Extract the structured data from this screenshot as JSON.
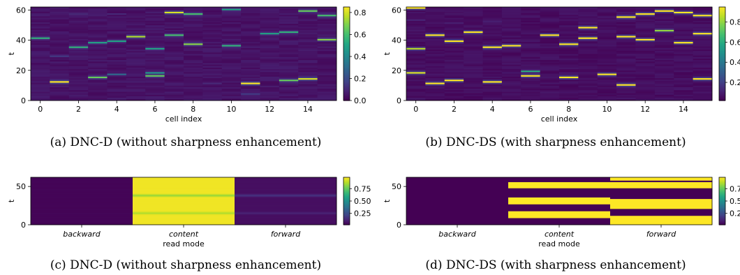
{
  "captions": [
    "(a) DNC-D (without sharpness enhancement)",
    "(b) DNC-DS (with sharpness enhancement)",
    "(c) DNC-D (without sharpness enhancement)",
    "(d) DNC-DS (with sharpness enhancement)"
  ],
  "chart_data": [
    {
      "type": "heatmap",
      "xlabel": "cell index",
      "ylabel": "t",
      "x_ticks": [
        0,
        2,
        4,
        6,
        8,
        10,
        12,
        14
      ],
      "y_ticks": [
        0,
        20,
        40,
        60
      ],
      "xlim": [
        -0.5,
        15.5
      ],
      "ylim": [
        0,
        62
      ],
      "colorbar_ticks": [
        "0.0",
        "0.2",
        "0.4",
        "0.6",
        "0.8"
      ],
      "colorbar_range": [
        0,
        0.85
      ],
      "colormap": "viridis",
      "background_value": 0.02,
      "peaks": [
        {
          "cell": 0,
          "t": 41,
          "v": 0.55
        },
        {
          "cell": 1,
          "t": 12,
          "v": 0.85
        },
        {
          "cell": 1,
          "t": 29,
          "v": 0.15
        },
        {
          "cell": 2,
          "t": 35,
          "v": 0.55
        },
        {
          "cell": 2,
          "t": 57,
          "v": 0.1
        },
        {
          "cell": 3,
          "t": 15,
          "v": 0.65
        },
        {
          "cell": 3,
          "t": 38,
          "v": 0.5
        },
        {
          "cell": 4,
          "t": 17,
          "v": 0.3
        },
        {
          "cell": 4,
          "t": 39,
          "v": 0.5
        },
        {
          "cell": 4,
          "t": 57,
          "v": 0.1
        },
        {
          "cell": 5,
          "t": 42,
          "v": 0.75
        },
        {
          "cell": 6,
          "t": 16,
          "v": 0.65
        },
        {
          "cell": 6,
          "t": 18,
          "v": 0.45
        },
        {
          "cell": 6,
          "t": 34,
          "v": 0.5
        },
        {
          "cell": 7,
          "t": 43,
          "v": 0.6
        },
        {
          "cell": 7,
          "t": 58,
          "v": 0.8
        },
        {
          "cell": 8,
          "t": 37,
          "v": 0.7
        },
        {
          "cell": 8,
          "t": 57,
          "v": 0.6
        },
        {
          "cell": 9,
          "t": 11,
          "v": 0.1
        },
        {
          "cell": 10,
          "t": 36,
          "v": 0.55
        },
        {
          "cell": 10,
          "t": 60,
          "v": 0.5
        },
        {
          "cell": 11,
          "t": 11,
          "v": 0.85
        },
        {
          "cell": 11,
          "t": 4,
          "v": 0.15
        },
        {
          "cell": 12,
          "t": 44,
          "v": 0.5
        },
        {
          "cell": 13,
          "t": 13,
          "v": 0.65
        },
        {
          "cell": 13,
          "t": 45,
          "v": 0.55
        },
        {
          "cell": 14,
          "t": 14,
          "v": 0.8
        },
        {
          "cell": 14,
          "t": 59,
          "v": 0.65
        },
        {
          "cell": 15,
          "t": 40,
          "v": 0.7
        },
        {
          "cell": 15,
          "t": 56,
          "v": 0.6
        }
      ]
    },
    {
      "type": "heatmap",
      "xlabel": "cell index",
      "ylabel": "t",
      "x_ticks": [
        0,
        2,
        4,
        6,
        8,
        10,
        12,
        14
      ],
      "y_ticks": [
        0,
        20,
        40,
        60
      ],
      "xlim": [
        -0.5,
        15.5
      ],
      "ylim": [
        0,
        62
      ],
      "colorbar_ticks": [
        "0.2",
        "0.4",
        "0.6",
        "0.8"
      ],
      "colorbar_range": [
        0.02,
        0.95
      ],
      "colormap": "viridis",
      "background_value": 0.03,
      "peaks": [
        {
          "cell": 0,
          "t": 61,
          "v": 0.95
        },
        {
          "cell": 0,
          "t": 34,
          "v": 0.85
        },
        {
          "cell": 0,
          "t": 18,
          "v": 0.9
        },
        {
          "cell": 0,
          "t": 53,
          "v": 0.12
        },
        {
          "cell": 1,
          "t": 11,
          "v": 0.95
        },
        {
          "cell": 1,
          "t": 43,
          "v": 0.95
        },
        {
          "cell": 2,
          "t": 13,
          "v": 0.95
        },
        {
          "cell": 2,
          "t": 39,
          "v": 0.95
        },
        {
          "cell": 2,
          "t": 51,
          "v": 0.1
        },
        {
          "cell": 3,
          "t": 45,
          "v": 0.95
        },
        {
          "cell": 4,
          "t": 12,
          "v": 0.95
        },
        {
          "cell": 4,
          "t": 35,
          "v": 0.95
        },
        {
          "cell": 4,
          "t": 52,
          "v": 0.1
        },
        {
          "cell": 5,
          "t": 36,
          "v": 0.95
        },
        {
          "cell": 6,
          "t": 19,
          "v": 0.6
        },
        {
          "cell": 6,
          "t": 16,
          "v": 0.95
        },
        {
          "cell": 7,
          "t": 43,
          "v": 0.95
        },
        {
          "cell": 8,
          "t": 15,
          "v": 0.95
        },
        {
          "cell": 8,
          "t": 37,
          "v": 0.95
        },
        {
          "cell": 9,
          "t": 41,
          "v": 0.95
        },
        {
          "cell": 9,
          "t": 48,
          "v": 0.95
        },
        {
          "cell": 10,
          "t": 17,
          "v": 0.95
        },
        {
          "cell": 11,
          "t": 10,
          "v": 0.95
        },
        {
          "cell": 11,
          "t": 42,
          "v": 0.95
        },
        {
          "cell": 11,
          "t": 55,
          "v": 0.95
        },
        {
          "cell": 12,
          "t": 40,
          "v": 0.95
        },
        {
          "cell": 12,
          "t": 57,
          "v": 0.95
        },
        {
          "cell": 13,
          "t": 46,
          "v": 0.8
        },
        {
          "cell": 13,
          "t": 59,
          "v": 0.95
        },
        {
          "cell": 14,
          "t": 38,
          "v": 0.95
        },
        {
          "cell": 14,
          "t": 58,
          "v": 0.95
        },
        {
          "cell": 15,
          "t": 14,
          "v": 0.95
        },
        {
          "cell": 15,
          "t": 44,
          "v": 0.95
        },
        {
          "cell": 15,
          "t": 56,
          "v": 0.95
        }
      ]
    },
    {
      "type": "heatmap",
      "xlabel": "read mode",
      "ylabel": "t",
      "categories": [
        "backward",
        "content",
        "forward"
      ],
      "y_ticks": [
        0,
        50
      ],
      "ylim": [
        0,
        62
      ],
      "colorbar_ticks": [
        "0.25",
        "0.50",
        "0.75"
      ],
      "colorbar_range": [
        0.02,
        0.98
      ],
      "colormap": "viridis",
      "columns": [
        {
          "name": "backward",
          "base": 0.03,
          "bands": []
        },
        {
          "name": "content",
          "base": 0.96,
          "bands": [
            {
              "t": 38,
              "v": 0.82
            },
            {
              "t": 15,
              "v": 0.86
            }
          ]
        },
        {
          "name": "forward",
          "base": 0.06,
          "bands": [
            {
              "t": 38,
              "v": 0.17
            },
            {
              "t": 15,
              "v": 0.12
            }
          ]
        }
      ]
    },
    {
      "type": "heatmap",
      "xlabel": "read mode",
      "ylabel": "t",
      "categories": [
        "backward",
        "content",
        "forward"
      ],
      "y_ticks": [
        0,
        50
      ],
      "ylim": [
        0,
        62
      ],
      "colorbar_ticks": [
        "0.25",
        "0.50",
        "0.75"
      ],
      "colorbar_range": [
        0.02,
        0.98
      ],
      "colormap": "viridis",
      "columns": [
        {
          "name": "backward",
          "segments": [
            {
              "t0": 0,
              "t1": 62,
              "v": 0.02
            }
          ]
        },
        {
          "name": "content",
          "segments": [
            {
              "t0": 0,
              "t1": 9,
              "v": 0.02
            },
            {
              "t0": 9,
              "t1": 18,
              "v": 0.98
            },
            {
              "t0": 18,
              "t1": 27,
              "v": 0.02
            },
            {
              "t0": 27,
              "t1": 36,
              "v": 0.98
            },
            {
              "t0": 36,
              "t1": 48,
              "v": 0.02
            },
            {
              "t0": 48,
              "t1": 56,
              "v": 0.98
            },
            {
              "t0": 56,
              "t1": 62,
              "v": 0.02
            }
          ]
        },
        {
          "name": "forward",
          "segments": [
            {
              "t0": 0,
              "t1": 12,
              "v": 0.98
            },
            {
              "t0": 12,
              "t1": 21,
              "v": 0.02
            },
            {
              "t0": 21,
              "t1": 34,
              "v": 0.98
            },
            {
              "t0": 34,
              "t1": 48,
              "v": 0.02
            },
            {
              "t0": 48,
              "t1": 56,
              "v": 0.98
            },
            {
              "t0": 56,
              "t1": 58,
              "v": 0.02
            },
            {
              "t0": 58,
              "t1": 62,
              "v": 0.98
            }
          ]
        }
      ]
    }
  ]
}
